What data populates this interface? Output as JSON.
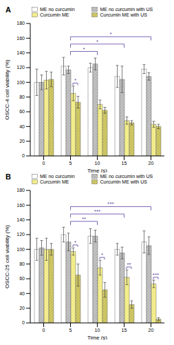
{
  "chart_data": [
    {
      "type": "bar",
      "title": "A",
      "x_label": "Time (s)",
      "y_label": "OSCC-4 cell viability (%)",
      "categories": [
        "0",
        "5",
        "10",
        "15",
        "20"
      ],
      "series": [
        {
          "name": "ME no curcumin",
          "color": "#ffffff",
          "values": [
            100,
            122,
            120,
            108,
            118
          ],
          "errors": [
            18,
            12,
            6,
            15,
            6
          ]
        },
        {
          "name": "ME no curcumin with US",
          "color": "#c8c8c8",
          "values": [
            100,
            117,
            125,
            104,
            108
          ],
          "errors": [
            10,
            5,
            8,
            18,
            5
          ]
        },
        {
          "name": "Curcumin ME",
          "color": "#f2ec8c",
          "values": [
            103,
            85,
            70,
            48,
            43
          ],
          "errors": [
            12,
            10,
            6,
            5,
            4
          ]
        },
        {
          "name": "Curcumin ME with US",
          "color": "#d9d060",
          "values": [
            104,
            73,
            62,
            45,
            40
          ],
          "errors": [
            10,
            8,
            4,
            3,
            3
          ]
        }
      ],
      "ylim": [
        0,
        180
      ],
      "yticks": [
        0,
        20,
        40,
        60,
        80,
        100,
        120,
        140,
        160,
        180
      ],
      "grid": false,
      "legend": "top",
      "annotations": [
        {
          "text": "*",
          "from": "5",
          "to": "5"
        },
        {
          "text": "*",
          "from": "5",
          "to": "10"
        },
        {
          "text": "*",
          "from": "5",
          "to": "15"
        },
        {
          "text": "*",
          "from": "5",
          "to": "20"
        }
      ]
    },
    {
      "type": "bar",
      "title": "B",
      "x_label": "Time (s)",
      "y_label": "OSCC-25 cell viability (%)",
      "categories": [
        "0",
        "5",
        "10",
        "15",
        "20"
      ],
      "series": [
        {
          "name": "ME no curcumin",
          "color": "#ffffff",
          "values": [
            100,
            120,
            118,
            100,
            110
          ],
          "errors": [
            15,
            10,
            10,
            8,
            15
          ]
        },
        {
          "name": "ME no curcumin with US",
          "color": "#c8c8c8",
          "values": [
            102,
            110,
            118,
            95,
            105
          ],
          "errors": [
            10,
            12,
            8,
            8,
            12
          ]
        },
        {
          "name": "Curcumin ME",
          "color": "#f2ec8c",
          "values": [
            100,
            97,
            75,
            62,
            53
          ],
          "errors": [
            15,
            5,
            10,
            10,
            5
          ]
        },
        {
          "name": "Curcumin ME with US",
          "color": "#d9d060",
          "values": [
            100,
            65,
            45,
            25,
            5
          ],
          "errors": [
            8,
            15,
            10,
            5,
            2
          ]
        }
      ],
      "ylim": [
        0,
        180
      ],
      "yticks": [
        0,
        20,
        40,
        60,
        80,
        100,
        120,
        140,
        160,
        180
      ],
      "grid": false,
      "legend": "top",
      "annotations": [
        {
          "text": "*",
          "from": "5",
          "to": "5"
        },
        {
          "text": "*",
          "from": "10",
          "to": "10"
        },
        {
          "text": "**",
          "from": "15",
          "to": "15"
        },
        {
          "text": "***",
          "from": "20",
          "to": "20"
        },
        {
          "text": "**",
          "from": "5",
          "to": "10"
        },
        {
          "text": "***",
          "from": "5",
          "to": "15"
        },
        {
          "text": "***",
          "from": "5",
          "to": "20"
        }
      ]
    }
  ]
}
